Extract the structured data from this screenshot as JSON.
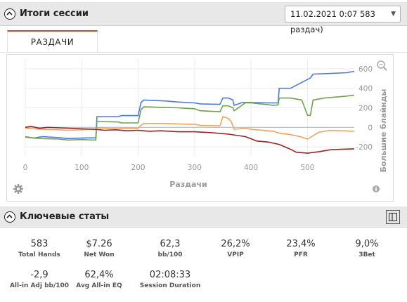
{
  "session_header": {
    "title": "Итоги сессии",
    "session_select": "11.02.2021 0:07 583 раздач)"
  },
  "tabs": [
    {
      "label": "РАЗДАЧИ"
    }
  ],
  "icons": {
    "toggle": "chevron-up-icon",
    "zoom": "zoom-icon",
    "settings": "gear-icon",
    "info": "info-icon",
    "panel": "panel-icon",
    "dropdown": "chevron-down-icon"
  },
  "colors": {
    "accent": "#d04a1c",
    "blue": "#4a7ae8",
    "green": "#6ea448",
    "orange": "#f2a35a",
    "darkred": "#9a2424",
    "zero": "#a8c0d0"
  },
  "chart_data": {
    "type": "line",
    "xlabel": "Раздачи",
    "ylabel": "Большие блайнды",
    "xlim": [
      0,
      583
    ],
    "ylim": [
      -300,
      700
    ],
    "x_ticks": [
      "0",
      "100",
      "200",
      "300",
      "400",
      "500"
    ],
    "y_ticks": [
      "-200",
      "0",
      "200",
      "400",
      "600"
    ],
    "series": [
      {
        "color": "#4a7ae8",
        "x": [
          0,
          15,
          30,
          60,
          75,
          100,
          110,
          125,
          127,
          130,
          165,
          170,
          200,
          205,
          210,
          250,
          270,
          300,
          310,
          345,
          350,
          360,
          368,
          370,
          385,
          400,
          430,
          448,
          450,
          470,
          505,
          510,
          530,
          570,
          583
        ],
        "y": [
          -100,
          -110,
          -95,
          -105,
          -115,
          -110,
          -108,
          -108,
          110,
          110,
          110,
          120,
          120,
          255,
          280,
          270,
          260,
          250,
          240,
          235,
          300,
          300,
          280,
          225,
          255,
          255,
          250,
          250,
          400,
          400,
          505,
          545,
          550,
          560,
          575
        ]
      },
      {
        "color": "#6ea448",
        "x": [
          0,
          15,
          30,
          60,
          75,
          100,
          110,
          125,
          127,
          130,
          165,
          170,
          200,
          205,
          210,
          240,
          270,
          300,
          310,
          345,
          350,
          360,
          368,
          370,
          390,
          400,
          440,
          448,
          450,
          470,
          490,
          500,
          505,
          510,
          530,
          570,
          583
        ],
        "y": [
          -95,
          -110,
          -115,
          -120,
          -130,
          -125,
          -128,
          -130,
          60,
          60,
          55,
          45,
          45,
          180,
          210,
          205,
          200,
          190,
          170,
          160,
          220,
          220,
          200,
          170,
          250,
          250,
          225,
          230,
          300,
          300,
          280,
          125,
          120,
          280,
          300,
          320,
          330
        ]
      },
      {
        "color": "#f2a35a",
        "x": [
          0,
          15,
          30,
          60,
          75,
          100,
          110,
          125,
          127,
          130,
          165,
          170,
          200,
          205,
          210,
          240,
          270,
          300,
          310,
          345,
          350,
          360,
          365,
          370,
          390,
          400,
          440,
          450,
          470,
          490,
          500,
          520,
          540,
          583
        ],
        "y": [
          -10,
          -15,
          -20,
          -25,
          -30,
          -25,
          -20,
          -22,
          -5,
          -5,
          -15,
          -10,
          -10,
          20,
          40,
          40,
          35,
          30,
          20,
          15,
          110,
          90,
          60,
          -20,
          -10,
          -20,
          -40,
          -60,
          -75,
          -100,
          -120,
          -50,
          -30,
          -40
        ]
      },
      {
        "color": "#9a2424",
        "x": [
          0,
          10,
          25,
          40,
          60,
          80,
          100,
          125,
          140,
          160,
          180,
          200,
          220,
          240,
          270,
          300,
          330,
          360,
          390,
          410,
          430,
          450,
          470,
          480,
          500,
          520,
          540,
          560,
          583
        ],
        "y": [
          0,
          10,
          -10,
          0,
          -5,
          -10,
          -15,
          -20,
          -30,
          -25,
          -35,
          -30,
          -40,
          -35,
          -45,
          -45,
          -55,
          -70,
          -95,
          -140,
          -150,
          -175,
          -225,
          -255,
          -265,
          -250,
          -230,
          -225,
          -220
        ]
      }
    ]
  },
  "stats_header": {
    "title": "Ключевые статы"
  },
  "stats": [
    {
      "value": "583",
      "label": "Total Hands"
    },
    {
      "value": "$7.26",
      "label": "Net Won"
    },
    {
      "value": "62,3",
      "label": "bb/100"
    },
    {
      "value": "26,2%",
      "label": "VPIP"
    },
    {
      "value": "23,4%",
      "label": "PFR"
    },
    {
      "value": "9,0%",
      "label": "3Bet"
    },
    {
      "value": "-2,9",
      "label": "All-in Adj bb/100"
    },
    {
      "value": "62,4%",
      "label": "Avg All-in EQ"
    },
    {
      "value": "02:08:33",
      "label": "Session Duration"
    }
  ]
}
